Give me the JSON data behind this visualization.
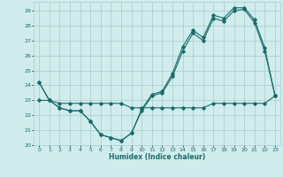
{
  "xlabel": "Humidex (Indice chaleur)",
  "xlim": [
    -0.5,
    23.5
  ],
  "ylim": [
    20,
    29.6
  ],
  "yticks": [
    20,
    21,
    22,
    23,
    24,
    25,
    26,
    27,
    28,
    29
  ],
  "xticks": [
    0,
    1,
    2,
    3,
    4,
    5,
    6,
    7,
    8,
    9,
    10,
    11,
    12,
    13,
    14,
    15,
    16,
    17,
    18,
    19,
    20,
    21,
    22,
    23
  ],
  "bg_color": "#d0ecec",
  "grid_color": "#a8cccc",
  "line_color": "#1a6b6b",
  "curve1_x": [
    0,
    1,
    2,
    3,
    4,
    5,
    6,
    7,
    8,
    9,
    10,
    11,
    12,
    13,
    14,
    15,
    16,
    17,
    18,
    19,
    20,
    21,
    22,
    23
  ],
  "curve1_y": [
    24.2,
    23.0,
    22.5,
    22.3,
    22.3,
    21.6,
    20.7,
    20.5,
    20.3,
    20.8,
    22.3,
    23.3,
    23.5,
    24.6,
    26.3,
    27.5,
    27.0,
    28.5,
    28.3,
    29.0,
    29.1,
    28.2,
    26.3,
    23.3
  ],
  "curve2_x": [
    0,
    1,
    2,
    3,
    4,
    5,
    6,
    7,
    8,
    9,
    10,
    11,
    12,
    13,
    14,
    15,
    16,
    17,
    18,
    19,
    20,
    21,
    22,
    23
  ],
  "curve2_y": [
    24.2,
    23.0,
    22.5,
    22.3,
    22.3,
    21.6,
    20.7,
    20.5,
    20.3,
    20.8,
    22.4,
    23.4,
    23.6,
    24.8,
    26.6,
    27.7,
    27.2,
    28.7,
    28.5,
    29.2,
    29.2,
    28.4,
    26.5,
    23.3
  ],
  "curve3_x": [
    0,
    1,
    2,
    3,
    4,
    5,
    6,
    7,
    8,
    9,
    10,
    11,
    12,
    13,
    14,
    15,
    16,
    17,
    18,
    19,
    20,
    21,
    22,
    23
  ],
  "curve3_y": [
    23.0,
    23.0,
    22.8,
    22.8,
    22.8,
    22.8,
    22.8,
    22.8,
    22.8,
    22.5,
    22.5,
    22.5,
    22.5,
    22.5,
    22.5,
    22.5,
    22.5,
    22.8,
    22.8,
    22.8,
    22.8,
    22.8,
    22.8,
    23.3
  ]
}
